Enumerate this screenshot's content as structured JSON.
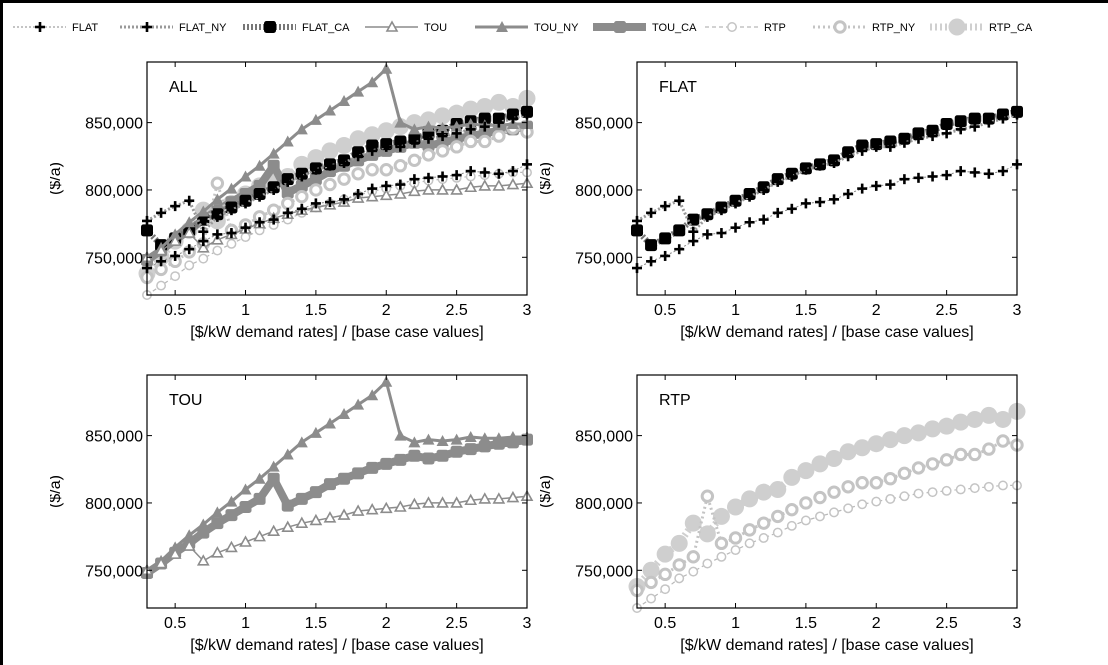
{
  "legend": {
    "entries": [
      {
        "key": "FLAT",
        "label": "FLAT"
      },
      {
        "key": "FLAT_NY",
        "label": "FLAT_NY"
      },
      {
        "key": "FLAT_CA",
        "label": "FLAT_CA"
      },
      {
        "key": "TOU",
        "label": "TOU"
      },
      {
        "key": "TOU_NY",
        "label": "TOU_NY"
      },
      {
        "key": "TOU_CA",
        "label": "TOU_CA"
      },
      {
        "key": "RTP",
        "label": "RTP"
      },
      {
        "key": "RTP_NY",
        "label": "RTP_NY"
      },
      {
        "key": "RTP_CA",
        "label": "RTP_CA"
      }
    ]
  },
  "styles": {
    "FLAT": {
      "color": "#000000",
      "line": "#888888",
      "marker": "plus",
      "lineWidth": 1,
      "dash": "2,2"
    },
    "FLAT_NY": {
      "color": "#000000",
      "line": "#999999",
      "marker": "plus",
      "lineWidth": 3,
      "dash": "2,2"
    },
    "FLAT_CA": {
      "color": "#000000",
      "line": "#777777",
      "marker": "square",
      "lineWidth": 6,
      "dash": "2,2"
    },
    "TOU": {
      "color": "#8c8c8c",
      "line": "#8c8c8c",
      "marker": "triangle-open",
      "lineWidth": 1.5,
      "dash": ""
    },
    "TOU_NY": {
      "color": "#8c8c8c",
      "line": "#8c8c8c",
      "marker": "triangle",
      "lineWidth": 3,
      "dash": ""
    },
    "TOU_CA": {
      "color": "#8c8c8c",
      "line": "#8c8c8c",
      "marker": "square",
      "lineWidth": 8,
      "dash": ""
    },
    "RTP": {
      "color": "#c4c4c4",
      "line": "#b8b8b8",
      "marker": "circle-open",
      "lineWidth": 1.2,
      "dash": "4,3"
    },
    "RTP_NY": {
      "color": "#c4c4c4",
      "line": "#c4c4c4",
      "marker": "circle-open-thick",
      "lineWidth": 3,
      "dash": "2,3"
    },
    "RTP_CA": {
      "color": "#cfcfcf",
      "line": "#cfcfcf",
      "marker": "circle",
      "lineWidth": 7,
      "dash": "2,3"
    }
  },
  "chart_data": [
    {
      "type": "line",
      "panel": "ALL",
      "title": "ALL",
      "xlabel": "[$/kW demand rates] / [base case values]",
      "ylabel": "($/a)",
      "xlim": [
        0.3,
        3.0
      ],
      "ylim": [
        722000,
        895000
      ],
      "xticks": [
        0.5,
        1,
        1.5,
        2,
        2.5,
        3
      ],
      "xtick_labels": [
        "0.5",
        "1",
        "1.5",
        "2",
        "2.5",
        "3"
      ],
      "yticks": [
        750000,
        800000,
        850000
      ],
      "ytick_labels": [
        "750,000",
        "800,000",
        "850,000"
      ],
      "series": [
        "FLAT",
        "FLAT_NY",
        "FLAT_CA",
        "TOU",
        "TOU_NY",
        "TOU_CA",
        "RTP",
        "RTP_NY",
        "RTP_CA"
      ]
    },
    {
      "type": "line",
      "panel": "FLAT",
      "title": "FLAT",
      "xlabel": "[$/kW demand rates] / [base case values]",
      "ylabel": "($/a)",
      "xlim": [
        0.3,
        3.0
      ],
      "ylim": [
        722000,
        895000
      ],
      "xticks": [
        0.5,
        1,
        1.5,
        2,
        2.5,
        3
      ],
      "xtick_labels": [
        "0.5",
        "1",
        "1.5",
        "2",
        "2.5",
        "3"
      ],
      "yticks": [
        750000,
        800000,
        850000
      ],
      "ytick_labels": [
        "750,000",
        "800,000",
        "850,000"
      ],
      "series": [
        "FLAT",
        "FLAT_NY",
        "FLAT_CA"
      ]
    },
    {
      "type": "line",
      "panel": "TOU",
      "title": "TOU",
      "xlabel": "[$/kW demand rates] / [base case values]",
      "ylabel": "($/a)",
      "xlim": [
        0.3,
        3.0
      ],
      "ylim": [
        722000,
        895000
      ],
      "xticks": [
        0.5,
        1,
        1.5,
        2,
        2.5,
        3
      ],
      "xtick_labels": [
        "0.5",
        "1",
        "1.5",
        "2",
        "2.5",
        "3"
      ],
      "yticks": [
        750000,
        800000,
        850000
      ],
      "ytick_labels": [
        "750,000",
        "800,000",
        "850,000"
      ],
      "series": [
        "TOU",
        "TOU_NY",
        "TOU_CA"
      ]
    },
    {
      "type": "line",
      "panel": "RTP",
      "title": "RTP",
      "xlabel": "[$/kW demand rates] / [base case values]",
      "ylabel": "($/a)",
      "xlim": [
        0.3,
        3.0
      ],
      "ylim": [
        722000,
        895000
      ],
      "xticks": [
        0.5,
        1,
        1.5,
        2,
        2.5,
        3
      ],
      "xtick_labels": [
        "0.5",
        "1",
        "1.5",
        "2",
        "2.5",
        "3"
      ],
      "yticks": [
        750000,
        800000,
        850000
      ],
      "ytick_labels": [
        "750,000",
        "800,000",
        "850,000"
      ],
      "series": [
        "RTP",
        "RTP_NY",
        "RTP_CA"
      ]
    }
  ],
  "series_data": {
    "x": [
      0.3,
      0.4,
      0.5,
      0.6,
      0.7,
      0.8,
      0.9,
      1.0,
      1.1,
      1.2,
      1.3,
      1.4,
      1.5,
      1.6,
      1.7,
      1.8,
      1.9,
      2.0,
      2.1,
      2.2,
      2.3,
      2.4,
      2.5,
      2.6,
      2.7,
      2.8,
      2.9,
      3.0
    ],
    "FLAT": [
      742000,
      747000,
      751000,
      756000,
      762000,
      767000,
      768000,
      772000,
      776000,
      778000,
      783000,
      786000,
      790000,
      791000,
      793000,
      797000,
      801000,
      803000,
      804000,
      808000,
      809000,
      810000,
      811000,
      814000,
      813000,
      812000,
      814000,
      819000
    ],
    "FLAT_NY": [
      777000,
      783000,
      788000,
      792000,
      769000,
      780000,
      785000,
      790000,
      795000,
      800000,
      806000,
      810000,
      815000,
      818000,
      820000,
      825000,
      829000,
      832000,
      832000,
      835000,
      838000,
      840000,
      842000,
      845000,
      847000,
      850000,
      853000,
      856000
    ],
    "FLAT_CA": [
      770000,
      759000,
      764000,
      770000,
      778000,
      782000,
      787000,
      792000,
      797000,
      802000,
      808000,
      812000,
      816000,
      819000,
      822000,
      828000,
      833000,
      834000,
      836000,
      838000,
      842000,
      844000,
      849000,
      851000,
      853000,
      853000,
      856000,
      858000
    ],
    "TOU": [
      750000,
      755000,
      762000,
      768000,
      757000,
      763000,
      767000,
      771000,
      775000,
      779000,
      782000,
      785000,
      787000,
      789000,
      791000,
      794000,
      795000,
      796000,
      797000,
      799000,
      800000,
      800000,
      800000,
      802000,
      803000,
      803000,
      804000,
      805000
    ],
    "TOU_NY": [
      748000,
      757000,
      767000,
      776000,
      784000,
      793000,
      801000,
      810000,
      818000,
      827000,
      836000,
      845000,
      852000,
      859000,
      866000,
      873000,
      880000,
      890000,
      850000,
      845000,
      847000,
      846000,
      847000,
      849000,
      848000,
      848000,
      849000,
      849000
    ],
    "TOU_CA": [
      748000,
      755000,
      763000,
      770000,
      778000,
      785000,
      791000,
      797000,
      803000,
      818000,
      798000,
      803000,
      808000,
      814000,
      818000,
      822000,
      826000,
      829000,
      832000,
      835000,
      833000,
      835000,
      838000,
      840000,
      842000,
      844000,
      845000,
      847000
    ],
    "RTP": [
      722000,
      729000,
      736000,
      744000,
      749000,
      755000,
      760000,
      765000,
      770000,
      774000,
      778000,
      783000,
      787000,
      790000,
      793000,
      796000,
      799000,
      801000,
      803000,
      805000,
      807000,
      808000,
      809000,
      810000,
      811000,
      812000,
      813000,
      813000
    ],
    "RTP_NY": [
      735000,
      741000,
      747000,
      754000,
      760000,
      805000,
      770000,
      774000,
      780000,
      785000,
      790000,
      795000,
      800000,
      804000,
      808000,
      812000,
      815000,
      815000,
      818000,
      822000,
      826000,
      829000,
      832000,
      836000,
      836000,
      840000,
      846000,
      843000
    ],
    "RTP_CA": [
      738000,
      750000,
      762000,
      770000,
      785000,
      777000,
      790000,
      797000,
      803000,
      808000,
      810000,
      819000,
      824000,
      829000,
      833000,
      838000,
      841000,
      844000,
      847000,
      850000,
      852000,
      855000,
      857000,
      860000,
      862000,
      865000,
      862000,
      868000
    ]
  }
}
